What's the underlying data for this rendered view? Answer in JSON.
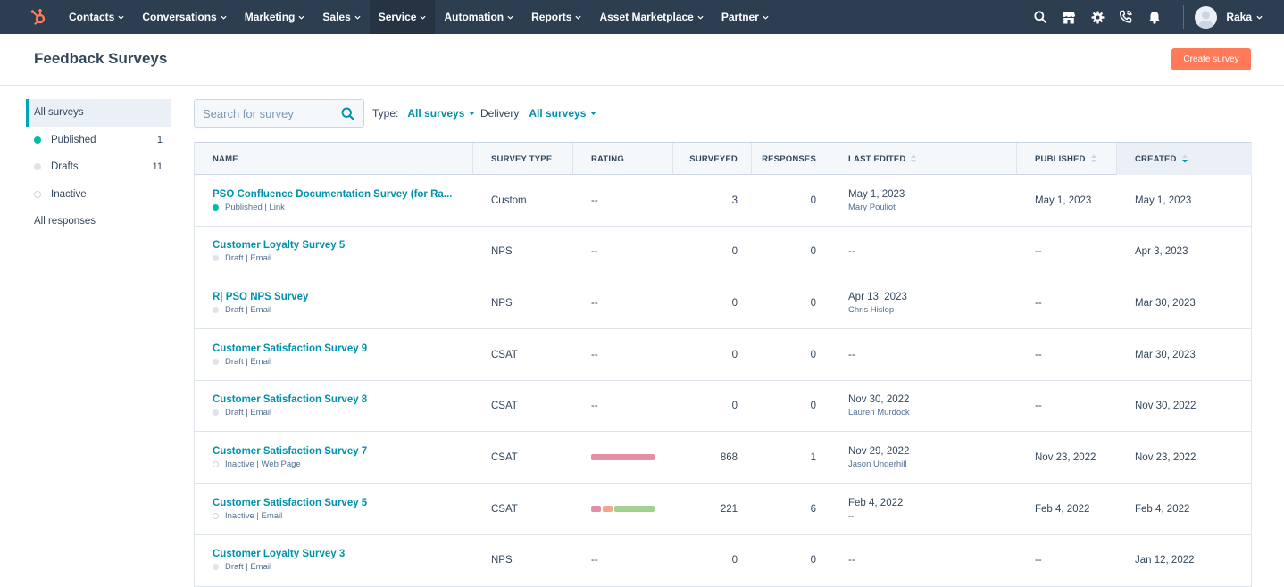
{
  "nav": {
    "items": [
      {
        "label": "Contacts",
        "name": "nav-contacts",
        "active": false
      },
      {
        "label": "Conversations",
        "name": "nav-conversations",
        "active": false
      },
      {
        "label": "Marketing",
        "name": "nav-marketing",
        "active": false
      },
      {
        "label": "Sales",
        "name": "nav-sales",
        "active": false
      },
      {
        "label": "Service",
        "name": "nav-service",
        "active": true
      },
      {
        "label": "Automation",
        "name": "nav-automation",
        "active": false
      },
      {
        "label": "Reports",
        "name": "nav-reports",
        "active": false
      },
      {
        "label": "Asset Marketplace",
        "name": "nav-asset-marketplace",
        "active": false
      },
      {
        "label": "Partner",
        "name": "nav-partner",
        "active": false
      }
    ],
    "user_name": "Raka"
  },
  "header": {
    "title": "Feedback Surveys",
    "create_label": "Create survey"
  },
  "sidebar": {
    "items": [
      {
        "label": "All surveys",
        "count": "",
        "dot": "",
        "active": true
      },
      {
        "label": "Published",
        "count": "1",
        "dot": "published",
        "active": false
      },
      {
        "label": "Drafts",
        "count": "11",
        "dot": "draft",
        "active": false
      },
      {
        "label": "Inactive",
        "count": "",
        "dot": "inactive",
        "active": false
      },
      {
        "label": "All responses",
        "count": "",
        "dot": "",
        "active": false
      }
    ]
  },
  "toolbar": {
    "search_placeholder": "Search for survey",
    "type_label": "Type:",
    "type_value": "All surveys",
    "delivery_label": "Delivery",
    "delivery_value": "All surveys"
  },
  "table": {
    "columns": {
      "name": "NAME",
      "survey_type": "SURVEY TYPE",
      "rating": "RATING",
      "surveyed": "SURVEYED",
      "responses": "RESPONSES",
      "last_edited": "LAST EDITED",
      "published": "PUBLISHED",
      "created": "CREATED"
    },
    "rows": [
      {
        "name": "PSO Confluence Documentation Survey (for Ra...",
        "status": "Published | Link",
        "dot": "published",
        "type": "Custom",
        "rating": "--",
        "rating_bar": null,
        "surveyed": "3",
        "responses": "0",
        "last_edited": "May 1, 2023",
        "editor": "Mary Pouliot",
        "published": "May 1, 2023",
        "created": "May 1, 2023"
      },
      {
        "name": "Customer Loyalty Survey 5",
        "status": "Draft | Email",
        "dot": "draft",
        "type": "NPS",
        "rating": "--",
        "rating_bar": null,
        "surveyed": "0",
        "responses": "0",
        "last_edited": "--",
        "editor": "",
        "published": "--",
        "created": "Apr 3, 2023"
      },
      {
        "name": "R| PSO NPS Survey",
        "status": "Draft | Email",
        "dot": "draft",
        "type": "NPS",
        "rating": "--",
        "rating_bar": null,
        "surveyed": "0",
        "responses": "0",
        "last_edited": "Apr 13, 2023",
        "editor": "Chris Hislop",
        "published": "--",
        "created": "Mar 30, 2023"
      },
      {
        "name": "Customer Satisfaction Survey 9",
        "status": "Draft | Email",
        "dot": "draft",
        "type": "CSAT",
        "rating": "--",
        "rating_bar": null,
        "surveyed": "0",
        "responses": "0",
        "last_edited": "--",
        "editor": "",
        "published": "--",
        "created": "Mar 30, 2023"
      },
      {
        "name": "Customer Satisfaction Survey 8",
        "status": "Draft | Email",
        "dot": "draft",
        "type": "CSAT",
        "rating": "--",
        "rating_bar": null,
        "surveyed": "0",
        "responses": "0",
        "last_edited": "Nov 30, 2022",
        "editor": "Lauren Murdock",
        "published": "--",
        "created": "Nov 30, 2022"
      },
      {
        "name": "Customer Satisfaction Survey 7",
        "status": "Inactive | Web Page",
        "dot": "inactive",
        "type": "CSAT",
        "rating": "",
        "rating_bar": [
          {
            "share": 1,
            "color": "#e68fa4"
          }
        ],
        "surveyed": "868",
        "responses": "1",
        "last_edited": "Nov 29, 2022",
        "editor": "Jason Underhill",
        "published": "Nov 23, 2022",
        "created": "Nov 23, 2022"
      },
      {
        "name": "Customer Satisfaction Survey 5",
        "status": "Inactive | Email",
        "dot": "inactive",
        "type": "CSAT",
        "rating": "",
        "rating_bar": [
          {
            "share": 1,
            "color": "#e68fa4"
          },
          {
            "share": 1,
            "color": "#f2a590"
          },
          {
            "share": 4,
            "color": "#a2d28f"
          }
        ],
        "surveyed": "221",
        "responses": "6",
        "last_edited": "Feb 4, 2022",
        "editor": "--",
        "published": "Feb 4, 2022",
        "created": "Feb 4, 2022"
      },
      {
        "name": "Customer Loyalty Survey 3",
        "status": "Draft | Email",
        "dot": "draft",
        "type": "NPS",
        "rating": "--",
        "rating_bar": null,
        "surveyed": "0",
        "responses": "0",
        "last_edited": "--",
        "editor": "",
        "published": "--",
        "created": "Jan 12, 2022"
      }
    ]
  }
}
